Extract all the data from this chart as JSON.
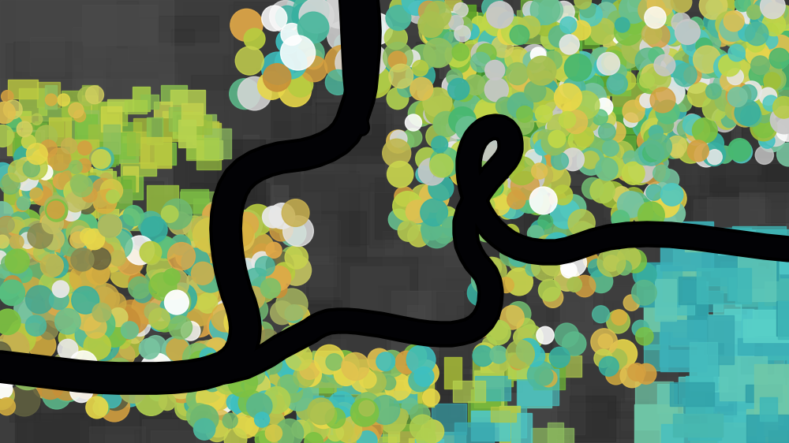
{
  "fig_width": 10.0,
  "fig_height": 5.62,
  "dpi": 100,
  "bg_color": "#3d3d3d",
  "circle_colors_main": [
    "#c8d44e",
    "#b8cc40",
    "#a0c038",
    "#90b830",
    "#7dc242",
    "#4db89e",
    "#3eb898",
    "#48b090",
    "#3ec0c0",
    "#50c8c0",
    "#e8d84a",
    "#d8cc48",
    "#c8c040",
    "#d4a040",
    "#c89038",
    "#a8c050",
    "#98b848",
    "#88a840",
    "#5cb88a",
    "#50a878",
    "#ffffff",
    "#e8e8e8",
    "#d8d8d8",
    "#c8c8c8",
    "#8b8b50",
    "#808048",
    "#787040",
    "#b4c850",
    "#70b870",
    "#60a860",
    "#c0c060",
    "#b0b058",
    "#48a890",
    "#3898808",
    "#606040",
    "#505038",
    "#90c060",
    "#80b050",
    "#d4d060",
    "#c4c058",
    "#38b0a0",
    "#28a090",
    "#c8b050",
    "#b8a048",
    "#a0a860",
    "#909858",
    "#e0c050",
    "#d0b048",
    "#68c090",
    "#58b080",
    "#b0d050",
    "#a0c048",
    "#78c4a0",
    "#68b490",
    "#e8e060",
    "#d8d050",
    "#c0d848",
    "#b0c840",
    "#50b890",
    "#40a880",
    "#d8b040",
    "#c8a038",
    "#a8b860",
    "#98a850",
    "#58c080",
    "#48b070",
    "#e4d050",
    "#d4c048",
    "#38b8b0",
    "#28a8a0",
    "#c8c050",
    "#b8b048",
    "#70a830",
    "#608028",
    "#b8d040",
    "#a8c038",
    "#48b870",
    "#38a860",
    "#d4c848",
    "#c4b840",
    "#80c068",
    "#70b058",
    "#c0b850",
    "#b0a848",
    "#58a878",
    "#489868",
    "#3cb0a8",
    "#2ca098",
    "#ccaa44",
    "#bc9a3c",
    "#a0b840",
    "#90a830",
    "#d08040",
    "#c07038",
    "#909060",
    "#808058"
  ],
  "teal_rect_colors": [
    "#50c8c8",
    "#48c0c0",
    "#40b8b8",
    "#58d0c8",
    "#3cb0b8",
    "#60c8b8",
    "#70c8a8",
    "#38a8b0",
    "#48b8b0",
    "#30a0a8"
  ],
  "yg_rect_colors": [
    "#c8d44e",
    "#b8c840",
    "#a8bc38",
    "#d0d848",
    "#c0cc40",
    "#7dc242",
    "#6db238",
    "#8cc250",
    "#90c060",
    "#80b050",
    "#a8d048",
    "#98c040",
    "#b8d450"
  ],
  "green_rect_colors": [
    "#7dc242",
    "#6db238",
    "#5ca228",
    "#4d9220",
    "#8cc250",
    "#60b840",
    "#50a830",
    "#40982a"
  ]
}
